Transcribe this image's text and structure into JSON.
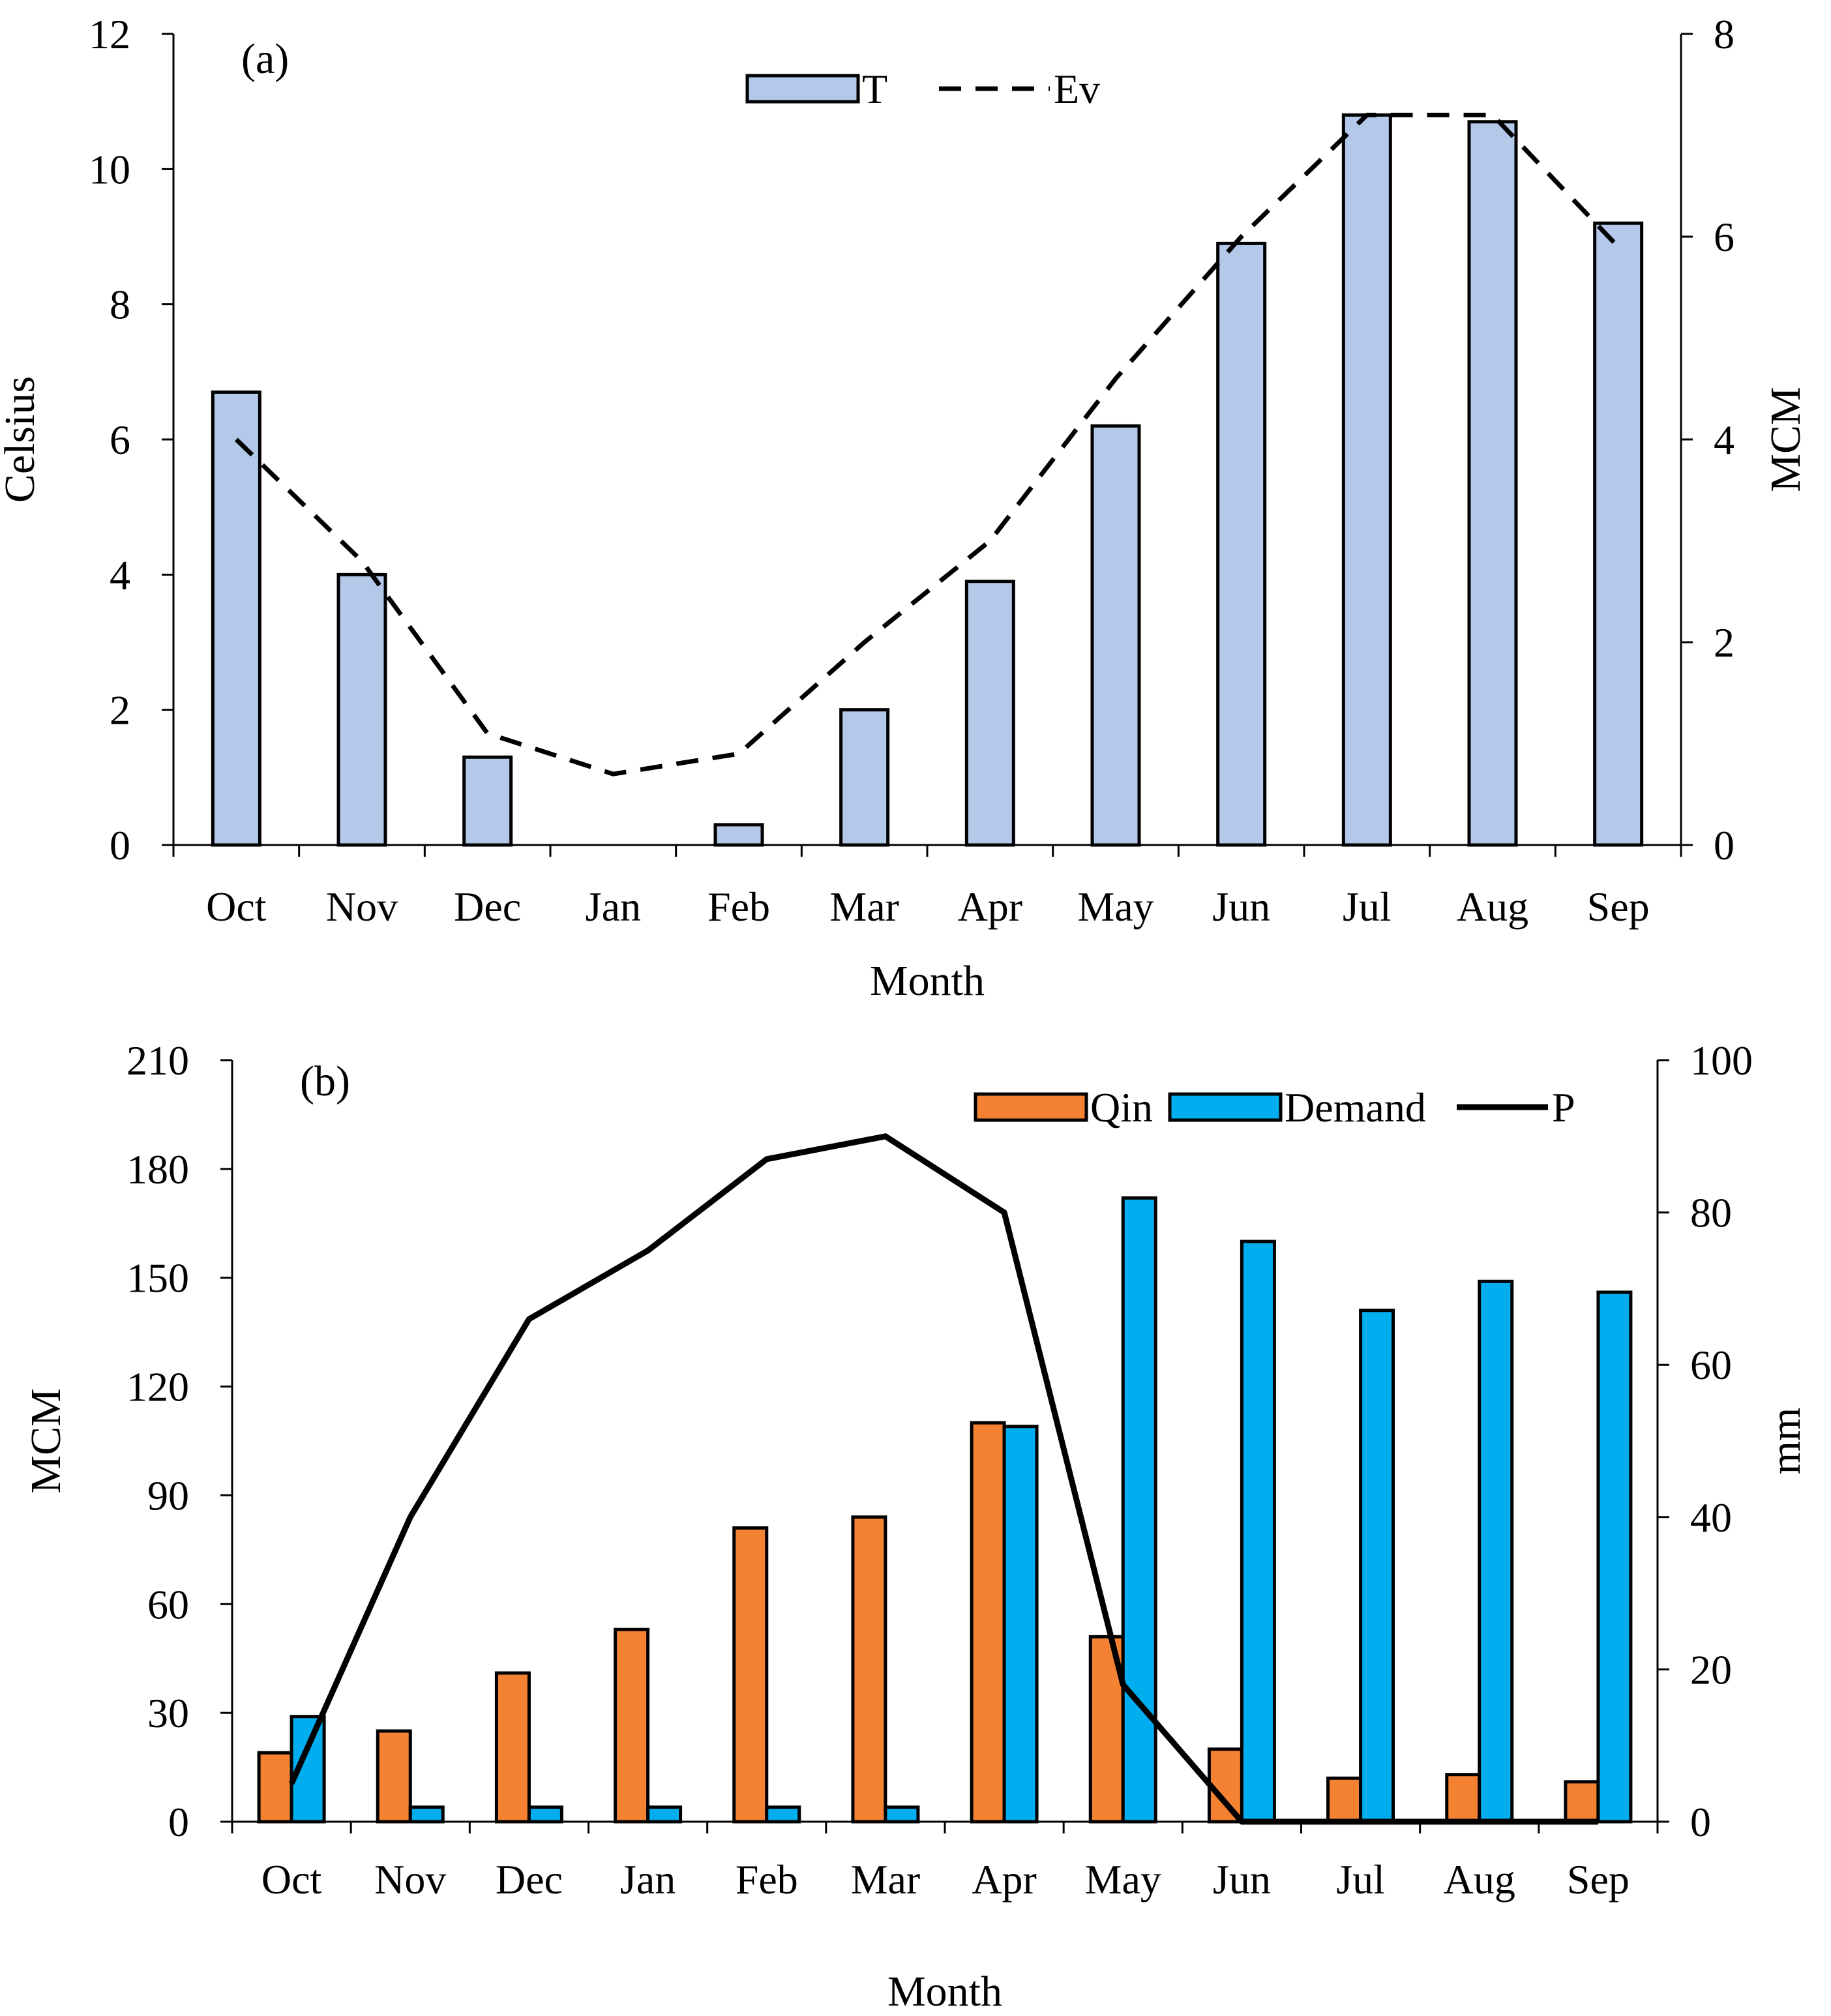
{
  "chart_data": [
    {
      "panel_label": "(a)",
      "type": "bar+line",
      "categories": [
        "Oct",
        "Nov",
        "Dec",
        "Jan",
        "Feb",
        "Mar",
        "Apr",
        "May",
        "Jun",
        "Jul",
        "Aug",
        "Sep"
      ],
      "xlabel": "Month",
      "ylabel_left": "Celsius",
      "ylabel_right": "MCM",
      "ylim_left": [
        0,
        12
      ],
      "ylim_right": [
        0,
        8
      ],
      "yticks_left": [
        "0",
        "2",
        "4",
        "6",
        "8",
        "10",
        "12"
      ],
      "yticks_right": [
        "0",
        "2",
        "4",
        "6",
        "8"
      ],
      "series": [
        {
          "name": "T",
          "kind": "bar",
          "axis": "left",
          "color": "#b4c9ea",
          "values": [
            6.7,
            4.0,
            1.3,
            0.0,
            0.3,
            2.0,
            3.9,
            6.2,
            8.9,
            10.8,
            10.7,
            9.2
          ]
        },
        {
          "name": "Ev",
          "kind": "line",
          "style": "dashed",
          "axis": "right",
          "color": "#000000",
          "values": [
            4.0,
            2.8,
            1.1,
            0.7,
            0.9,
            2.0,
            3.0,
            4.6,
            6.0,
            7.2,
            7.2,
            5.9
          ]
        }
      ],
      "legend": [
        {
          "label": "T",
          "kind": "bar"
        },
        {
          "label": "Ev",
          "kind": "dashed-line"
        }
      ]
    },
    {
      "panel_label": "(b)",
      "type": "bar+line",
      "categories": [
        "Oct",
        "Nov",
        "Dec",
        "Jan",
        "Feb",
        "Mar",
        "Apr",
        "May",
        "Jun",
        "Jul",
        "Aug",
        "Sep"
      ],
      "xlabel": "Month",
      "ylabel_left": "MCM",
      "ylabel_right": "mm",
      "ylim_left": [
        0,
        210
      ],
      "ylim_right": [
        0,
        100
      ],
      "yticks_left": [
        "0",
        "30",
        "60",
        "90",
        "120",
        "150",
        "180",
        "210"
      ],
      "yticks_right": [
        "0",
        "20",
        "40",
        "60",
        "80",
        "100"
      ],
      "series": [
        {
          "name": "Qin",
          "kind": "bar",
          "axis": "left",
          "color": "#f58232",
          "values": [
            19,
            25,
            41,
            53,
            81,
            84,
            110,
            51,
            20,
            12,
            13,
            11
          ]
        },
        {
          "name": "Demand",
          "kind": "bar",
          "axis": "left",
          "color": "#00aeef",
          "values": [
            29,
            4,
            4,
            4,
            4,
            4,
            109,
            172,
            160,
            141,
            149,
            146
          ]
        },
        {
          "name": "P",
          "kind": "line",
          "style": "solid",
          "axis": "right",
          "color": "#000000",
          "values": [
            5,
            40,
            66,
            75,
            87,
            90,
            80,
            18,
            0,
            0,
            0,
            0
          ]
        }
      ],
      "legend": [
        {
          "label": "Qin",
          "kind": "bar"
        },
        {
          "label": "Demand",
          "kind": "bar"
        },
        {
          "label": "P",
          "kind": "line"
        }
      ]
    }
  ]
}
